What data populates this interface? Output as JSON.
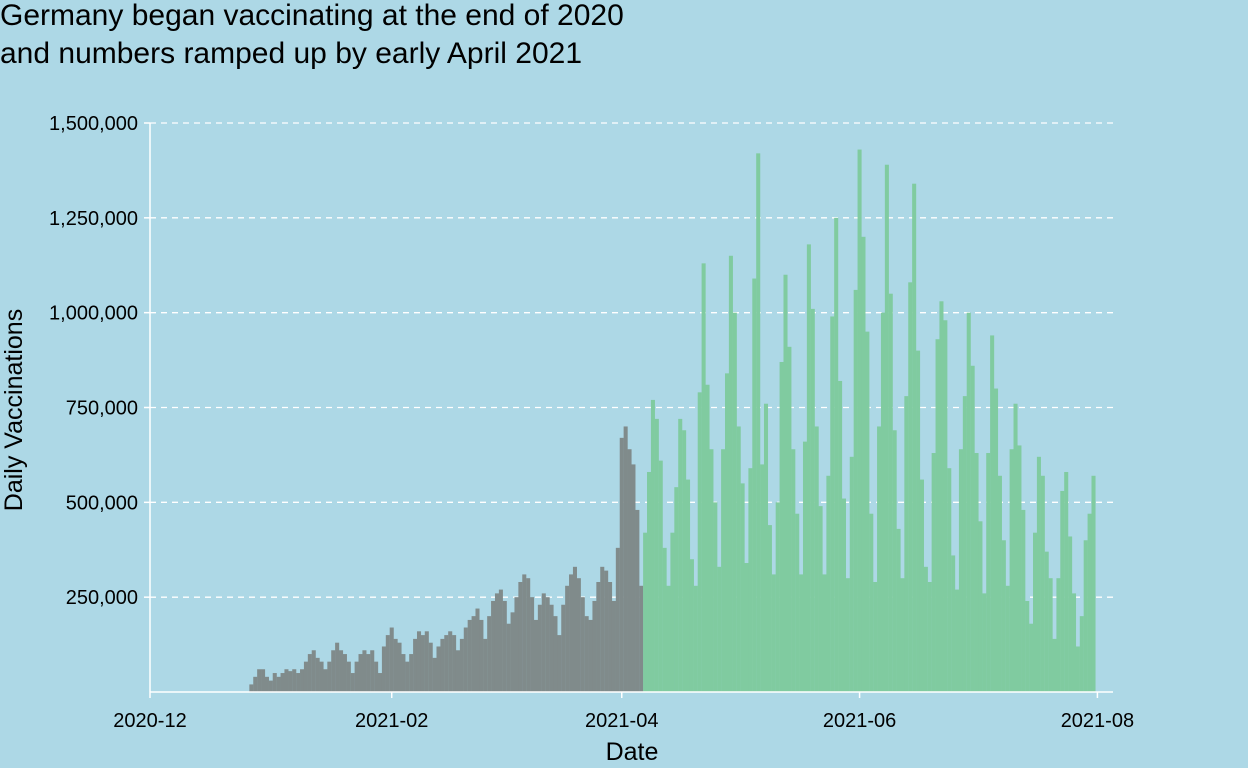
{
  "title_lines": [
    "Germany began vaccinating at the end of 2020",
    "and numbers ramped up by early April 2021"
  ],
  "chart_data": {
    "type": "bar",
    "xlabel": "Date",
    "ylabel": "Daily Vaccinations",
    "x_range": [
      "2020-12-01",
      "2021-08-05"
    ],
    "ylim": [
      0,
      1500000
    ],
    "x_ticks": [
      "2020-12",
      "2021-02",
      "2021-04",
      "2021-06",
      "2021-08"
    ],
    "y_ticks": [
      "250,000",
      "500,000",
      "750,000",
      "1,000,000",
      "1,250,000",
      "1,500,000"
    ],
    "grid": "horizontal dashed",
    "legend": "none",
    "highlight_from": "2021-04-07",
    "colors": {
      "background": "#add8e6",
      "before": "#808b8b",
      "after": "#80cba0",
      "grid": "#ffffff"
    },
    "x_start": "2020-12-27",
    "values": [
      20000,
      40000,
      60000,
      60000,
      40000,
      30000,
      50000,
      40000,
      50000,
      60000,
      55000,
      60000,
      50000,
      60000,
      80000,
      100000,
      110000,
      90000,
      80000,
      60000,
      80000,
      110000,
      130000,
      110000,
      100000,
      80000,
      50000,
      80000,
      100000,
      110000,
      100000,
      110000,
      80000,
      50000,
      120000,
      150000,
      170000,
      140000,
      130000,
      100000,
      80000,
      100000,
      140000,
      160000,
      150000,
      160000,
      130000,
      90000,
      120000,
      140000,
      150000,
      160000,
      150000,
      110000,
      140000,
      170000,
      190000,
      200000,
      220000,
      190000,
      140000,
      200000,
      240000,
      260000,
      270000,
      240000,
      180000,
      210000,
      250000,
      290000,
      310000,
      300000,
      250000,
      190000,
      230000,
      260000,
      250000,
      230000,
      200000,
      150000,
      230000,
      280000,
      310000,
      330000,
      300000,
      250000,
      200000,
      190000,
      240000,
      290000,
      330000,
      320000,
      290000,
      240000,
      380000,
      670000,
      700000,
      640000,
      600000,
      480000,
      280000,
      420000,
      580000,
      770000,
      720000,
      610000,
      380000,
      280000,
      420000,
      540000,
      720000,
      690000,
      560000,
      350000,
      280000,
      790000,
      1130000,
      810000,
      640000,
      500000,
      330000,
      640000,
      840000,
      1150000,
      1000000,
      700000,
      550000,
      340000,
      590000,
      1090000,
      1420000,
      600000,
      760000,
      440000,
      310000,
      500000,
      870000,
      1100000,
      910000,
      640000,
      470000,
      310000,
      660000,
      1180000,
      1010000,
      700000,
      490000,
      310000,
      570000,
      990000,
      1250000,
      820000,
      510000,
      300000,
      620000,
      1060000,
      1430000,
      1200000,
      950000,
      470000,
      290000,
      700000,
      1000000,
      1390000,
      1050000,
      690000,
      430000,
      300000,
      780000,
      1080000,
      1340000,
      900000,
      560000,
      330000,
      290000,
      630000,
      930000,
      1030000,
      980000,
      590000,
      360000,
      270000,
      640000,
      780000,
      1000000,
      860000,
      630000,
      450000,
      260000,
      630000,
      940000,
      800000,
      570000,
      400000,
      280000,
      640000,
      760000,
      650000,
      480000,
      240000,
      180000,
      420000,
      620000,
      570000,
      370000,
      300000,
      140000,
      300000,
      530000,
      580000,
      410000,
      260000,
      120000,
      200000,
      400000,
      470000,
      570000
    ]
  }
}
